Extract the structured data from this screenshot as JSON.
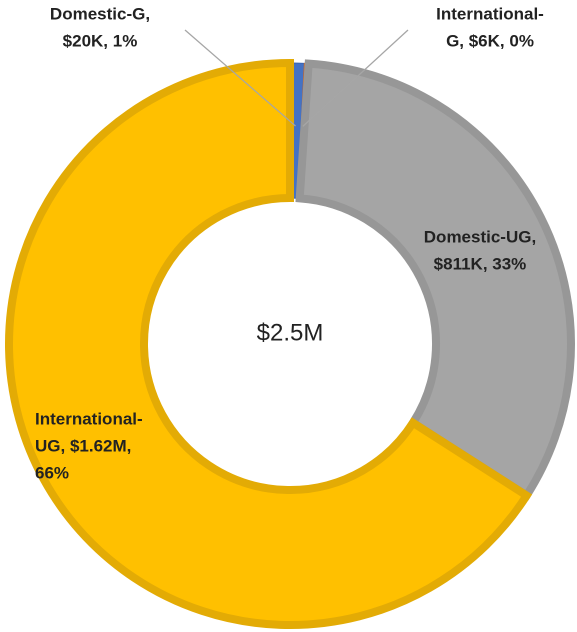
{
  "chart_data": {
    "type": "donut",
    "labels": [
      [
        "Domestic-G,",
        "$20K, 1%"
      ],
      [
        "International-",
        "G, $6K, 0%"
      ],
      [
        "Domestic-UG,",
        "$811K, 33%"
      ],
      [
        "International-",
        "UG, $1.62M,",
        "66%"
      ]
    ],
    "values": [
      20000,
      6000,
      811000,
      1620000
    ],
    "colors": [
      "#4472c4",
      "#ed7d31",
      "#a5a5a5",
      "#ffc000"
    ],
    "border_colors": [
      "#3a64b0",
      "#d06a25",
      "#979797",
      "#e3ab05"
    ],
    "center_label": "$2.5M"
  }
}
